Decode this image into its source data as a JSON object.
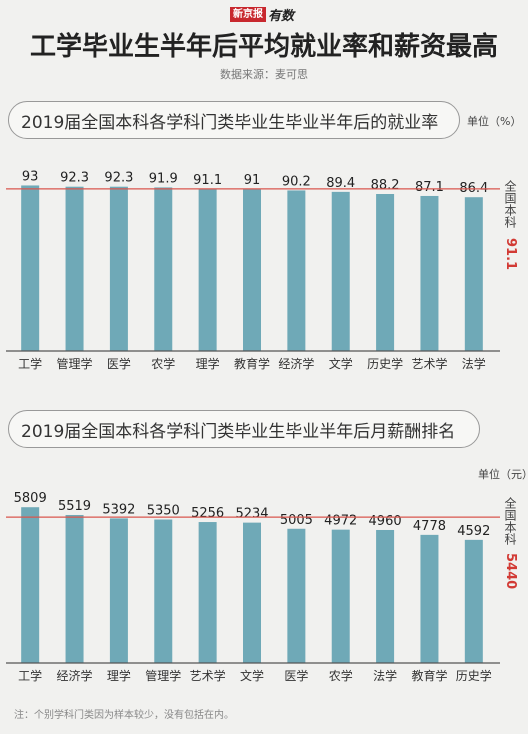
{
  "header": {
    "logo_box": "新京报",
    "logo_script": "有数",
    "title": "工学毕业生半年后平均就业率和薪资最高",
    "source": "数据来源：麦可思"
  },
  "chart1": {
    "title": "2019届全国本科各学科门类毕业生毕业半年后的就业率",
    "unit": "单位（%）",
    "ref_label": "全国本科",
    "ref_value_text": "91.1"
  },
  "chart2": {
    "title": "2019届全国本科各学科门类毕业生毕业半年后月薪酬排名",
    "unit": "单位（元）",
    "ref_label": "全国本科",
    "ref_value_text": "5440"
  },
  "note": "注：个别学科门类因为样本较少，没有包括在内。",
  "colors": {
    "bar": "#6fa9b7",
    "ref_line": "#d9564e",
    "axis": "#555555"
  },
  "chart_data": [
    {
      "type": "bar",
      "title": "2019届全国本科各学科门类毕业生毕业半年后的就业率",
      "ylabel": "单位（%）",
      "categories": [
        "工学",
        "管理学",
        "医学",
        "农学",
        "理学",
        "教育学",
        "经济学",
        "文学",
        "历史学",
        "艺术学",
        "法学"
      ],
      "values": [
        93,
        92.3,
        92.3,
        91.9,
        91.1,
        91,
        90.2,
        89.4,
        88.2,
        87.1,
        86.4
      ],
      "reference": {
        "label": "全国本科",
        "value": 91.1
      },
      "ylim": [
        0,
        100
      ]
    },
    {
      "type": "bar",
      "title": "2019届全国本科各学科门类毕业生毕业半年后月薪酬排名",
      "ylabel": "单位（元）",
      "categories": [
        "工学",
        "经济学",
        "理学",
        "管理学",
        "艺术学",
        "文学",
        "医学",
        "农学",
        "法学",
        "教育学",
        "历史学"
      ],
      "values": [
        5809,
        5519,
        5392,
        5350,
        5256,
        5234,
        5005,
        4972,
        4960,
        4778,
        4592
      ],
      "reference": {
        "label": "全国本科",
        "value": 5440
      },
      "ylim": [
        0,
        6600
      ]
    }
  ]
}
